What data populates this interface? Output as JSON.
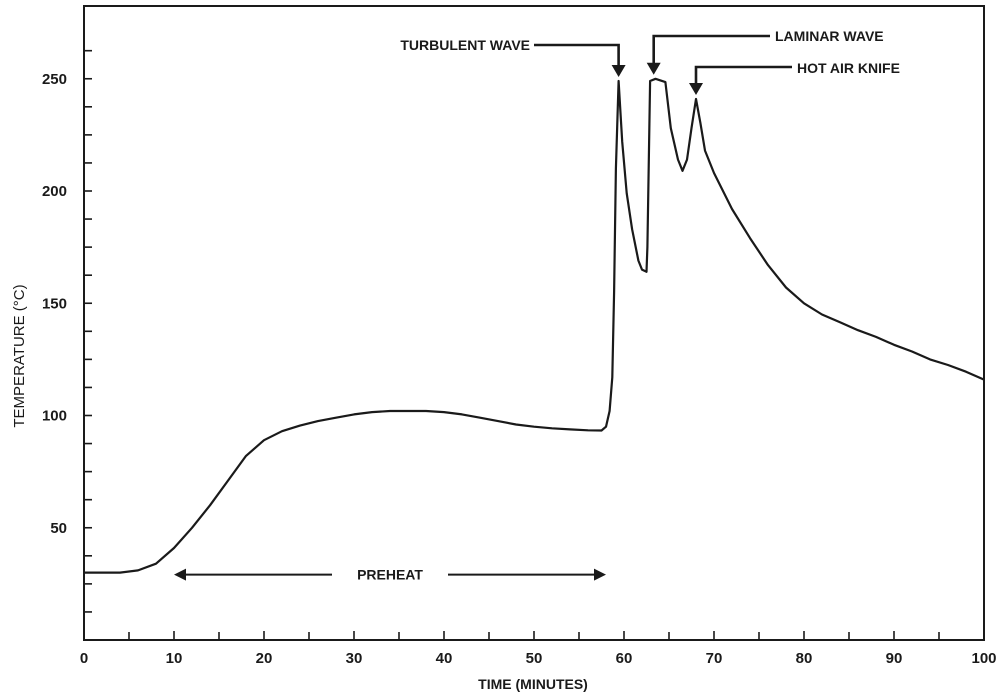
{
  "chart_data": {
    "type": "line",
    "xlabel": "TIME (MINUTES)",
    "ylabel": "TEMPERATURE  (°C)",
    "xlim": [
      0,
      100
    ],
    "ylim": [
      0,
      275
    ],
    "x_ticks": [
      0,
      10,
      20,
      30,
      40,
      50,
      60,
      70,
      80,
      90,
      100
    ],
    "y_ticks": [
      50,
      100,
      150,
      200,
      250
    ],
    "grid": false,
    "series": [
      {
        "points": [
          [
            0,
            30
          ],
          [
            2,
            30
          ],
          [
            4,
            30
          ],
          [
            6,
            31
          ],
          [
            8,
            34
          ],
          [
            10,
            41
          ],
          [
            12,
            50
          ],
          [
            14,
            60
          ],
          [
            16,
            71
          ],
          [
            18,
            82
          ],
          [
            20,
            89
          ],
          [
            22,
            93
          ],
          [
            24,
            95.5
          ],
          [
            26,
            97.5
          ],
          [
            28,
            99
          ],
          [
            30,
            100.5
          ],
          [
            32,
            101.5
          ],
          [
            34,
            102
          ],
          [
            36,
            102
          ],
          [
            38,
            102
          ],
          [
            40,
            101.5
          ],
          [
            42,
            100.5
          ],
          [
            44,
            99
          ],
          [
            46,
            97.5
          ],
          [
            48,
            96
          ],
          [
            50,
            95
          ],
          [
            52,
            94.3
          ],
          [
            54,
            93.8
          ],
          [
            56,
            93.4
          ],
          [
            57.5,
            93.3
          ],
          [
            58,
            95
          ],
          [
            58.4,
            102
          ],
          [
            58.7,
            117
          ],
          [
            58.9,
            155
          ],
          [
            59.1,
            210
          ],
          [
            59.4,
            249
          ],
          [
            59.8,
            222
          ],
          [
            60.3,
            199
          ],
          [
            60.9,
            183
          ],
          [
            61.6,
            169
          ],
          [
            62,
            165
          ],
          [
            62.5,
            164
          ],
          [
            62.6,
            175
          ],
          [
            62.9,
            249
          ],
          [
            63.5,
            250
          ],
          [
            64.6,
            248.5
          ],
          [
            65.2,
            228
          ],
          [
            66,
            214
          ],
          [
            66.5,
            209
          ],
          [
            67,
            214
          ],
          [
            67.5,
            228
          ],
          [
            68,
            241
          ],
          [
            68.5,
            230
          ],
          [
            69,
            218
          ],
          [
            70,
            208
          ],
          [
            72,
            192
          ],
          [
            74,
            179
          ],
          [
            76,
            167
          ],
          [
            78,
            157
          ],
          [
            80,
            150
          ],
          [
            82,
            145
          ],
          [
            84,
            141.5
          ],
          [
            86,
            138
          ],
          [
            88,
            135
          ],
          [
            90,
            131.5
          ],
          [
            92,
            128.5
          ],
          [
            94,
            125
          ],
          [
            96,
            122.5
          ],
          [
            98,
            119.5
          ],
          [
            100,
            116
          ]
        ]
      }
    ],
    "annotations": [
      {
        "label": "TURBULENT WAVE",
        "x": 59.4,
        "y": 249
      },
      {
        "label": "LAMINAR WAVE",
        "x": 63.3,
        "y": 250
      },
      {
        "label": "HOT AIR KNIFE",
        "x": 68,
        "y": 241
      },
      {
        "label": "PREHEAT",
        "range": [
          10,
          58
        ],
        "y": 30
      }
    ]
  }
}
